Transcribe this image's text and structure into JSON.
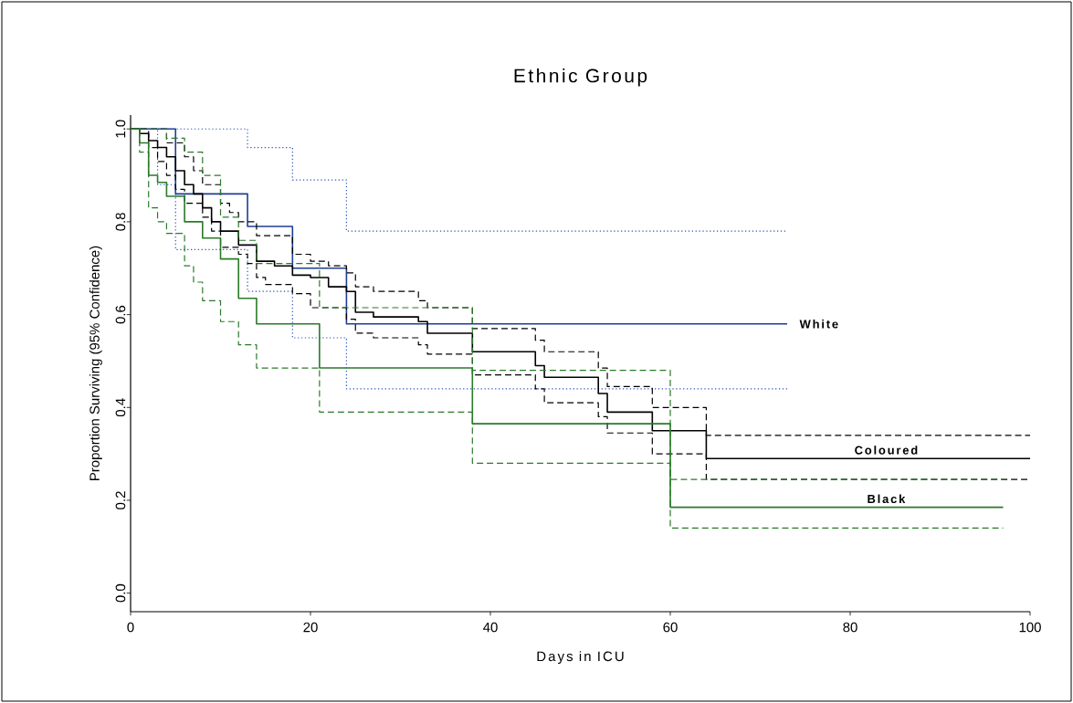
{
  "chart_data": {
    "type": "step",
    "title": "Ethnic Group",
    "xlabel": "Days in ICU",
    "ylabel": "Proportion Surviving (95% Confidence)",
    "xlim": [
      0,
      100
    ],
    "ylim": [
      -0.04,
      1.03
    ],
    "xticks": [
      0,
      20,
      40,
      60,
      80,
      100
    ],
    "yticks": [
      {
        "value": 0,
        "label": "0.0"
      },
      {
        "value": 0.2,
        "label": "0.2"
      },
      {
        "value": 0.4,
        "label": "0.4"
      },
      {
        "value": 0.6,
        "label": "0.6"
      },
      {
        "value": 0.8,
        "label": "0.8"
      },
      {
        "value": 1,
        "label": "1.0"
      }
    ],
    "series": [
      {
        "name": "White",
        "color": "#1c3f94",
        "line_style": "solid",
        "x": [
          0,
          5,
          13,
          18,
          24,
          73
        ],
        "values": [
          1.0,
          0.86,
          0.79,
          0.7,
          0.58,
          0.58
        ]
      },
      {
        "color": "#3355bb",
        "line_style": "dotted",
        "x": [
          0,
          13,
          18,
          24,
          73
        ],
        "values": [
          1.0,
          0.96,
          0.89,
          0.78,
          0.78
        ]
      },
      {
        "color": "#3355bb",
        "line_style": "dotted",
        "x": [
          0,
          3,
          5,
          13,
          18,
          24,
          73
        ],
        "values": [
          1.0,
          0.88,
          0.74,
          0.65,
          0.55,
          0.44,
          0.44
        ]
      },
      {
        "name": "Coloured",
        "color": "#000000",
        "line_style": "solid",
        "x": [
          0,
          1,
          2,
          3,
          4,
          5,
          6,
          7,
          8,
          9,
          10,
          12,
          14,
          16,
          18,
          20,
          22,
          24,
          25,
          27,
          32,
          33,
          38,
          45,
          46,
          52,
          53,
          58,
          64,
          100
        ],
        "values": [
          1.0,
          0.99,
          0.975,
          0.96,
          0.94,
          0.91,
          0.88,
          0.86,
          0.83,
          0.8,
          0.78,
          0.75,
          0.715,
          0.705,
          0.685,
          0.68,
          0.66,
          0.65,
          0.605,
          0.595,
          0.585,
          0.56,
          0.52,
          0.49,
          0.465,
          0.43,
          0.39,
          0.35,
          0.29,
          0.29
        ]
      },
      {
        "color": "#000000",
        "line_style": "dashed",
        "x": [
          0,
          4,
          6,
          7,
          8,
          10,
          11,
          12,
          14,
          18,
          20,
          22,
          24,
          25,
          27,
          32,
          33,
          38,
          45,
          46,
          52,
          53,
          58,
          64,
          100
        ],
        "values": [
          1.0,
          0.97,
          0.94,
          0.91,
          0.88,
          0.84,
          0.82,
          0.8,
          0.77,
          0.73,
          0.715,
          0.705,
          0.69,
          0.66,
          0.65,
          0.63,
          0.615,
          0.57,
          0.545,
          0.52,
          0.485,
          0.445,
          0.4,
          0.34,
          0.34
        ]
      },
      {
        "color": "#000000",
        "line_style": "dashed",
        "x": [
          0,
          2,
          3,
          4,
          5,
          6,
          8,
          9,
          10,
          12,
          13,
          14,
          15,
          18,
          20,
          24,
          25,
          27,
          32,
          33,
          38,
          45,
          46,
          52,
          53,
          58,
          64,
          100
        ],
        "values": [
          1.0,
          0.96,
          0.93,
          0.9,
          0.87,
          0.84,
          0.81,
          0.78,
          0.745,
          0.73,
          0.71,
          0.68,
          0.665,
          0.645,
          0.615,
          0.59,
          0.56,
          0.55,
          0.535,
          0.515,
          0.47,
          0.44,
          0.41,
          0.38,
          0.345,
          0.3,
          0.245,
          0.245
        ]
      },
      {
        "name": "Black",
        "color": "#2a7a2a",
        "line_style": "solid",
        "x": [
          0,
          1,
          2,
          3,
          4,
          6,
          8,
          10,
          12,
          14,
          21,
          38,
          60,
          97
        ],
        "values": [
          1.0,
          0.97,
          0.9,
          0.885,
          0.855,
          0.8,
          0.765,
          0.72,
          0.635,
          0.58,
          0.485,
          0.365,
          0.185,
          0.185
        ]
      },
      {
        "color": "#2a7a2a",
        "line_style": "dashed",
        "x": [
          0,
          4,
          6,
          8,
          10,
          12,
          14,
          21,
          38,
          60,
          97
        ],
        "values": [
          1.0,
          0.98,
          0.95,
          0.9,
          0.81,
          0.76,
          0.71,
          0.615,
          0.48,
          0.245,
          0.245
        ]
      },
      {
        "color": "#2a7a2a",
        "line_style": "dashed",
        "x": [
          0,
          1,
          2,
          3,
          4,
          6,
          7,
          8,
          10,
          12,
          14,
          21,
          38,
          60,
          97
        ],
        "values": [
          1.0,
          0.95,
          0.83,
          0.8,
          0.775,
          0.705,
          0.67,
          0.63,
          0.585,
          0.535,
          0.485,
          0.39,
          0.28,
          0.14,
          0.14
        ]
      }
    ]
  }
}
